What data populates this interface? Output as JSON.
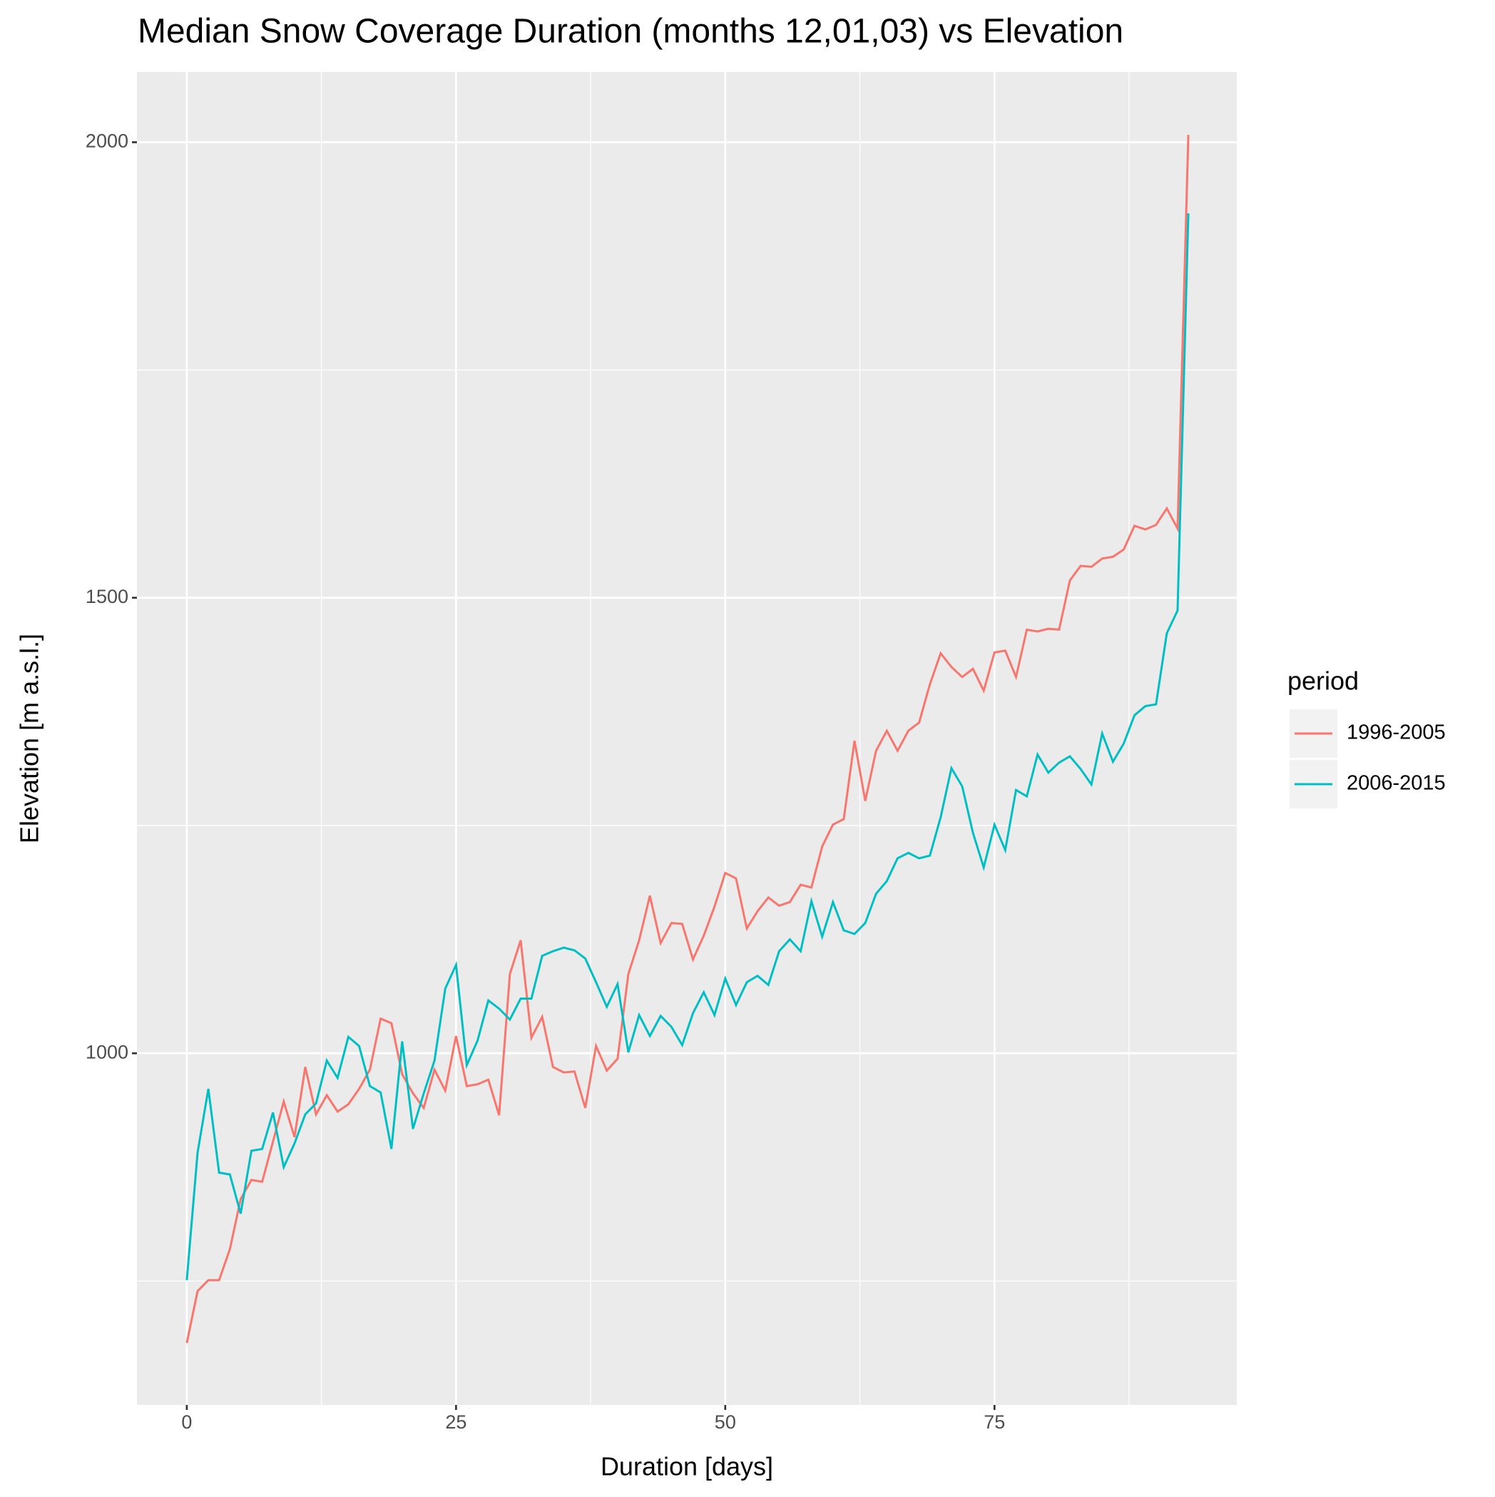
{
  "chart_data": {
    "type": "line",
    "title": "Median Snow Coverage Duration (months 12,01,03) vs Elevation",
    "x_label": "Duration [days]",
    "y_label": "Elevation [m a.s.l.]",
    "legend_title": "period",
    "legend_position": "right",
    "x": [
      0,
      1,
      2,
      3,
      4,
      5,
      6,
      7,
      8,
      9,
      10,
      11,
      12,
      13,
      14,
      15,
      16,
      17,
      18,
      19,
      20,
      21,
      22,
      23,
      24,
      25,
      26,
      27,
      28,
      29,
      30,
      31,
      32,
      33,
      34,
      35,
      36,
      37,
      38,
      39,
      40,
      41,
      42,
      43,
      44,
      45,
      46,
      47,
      48,
      49,
      50,
      51,
      52,
      53,
      54,
      55,
      56,
      57,
      58,
      59,
      60,
      61,
      62,
      63,
      64,
      65,
      66,
      67,
      68,
      69,
      70,
      71,
      72,
      73,
      74,
      75,
      76,
      77,
      78,
      79,
      80,
      81,
      82,
      83,
      84,
      85,
      86,
      87,
      88,
      89,
      90,
      91,
      92,
      93
    ],
    "series": [
      {
        "name": "1996-2005",
        "color": "#f8766d",
        "values": [
          682,
          739,
          751,
          751,
          785,
          840,
          861,
          859,
          903,
          947,
          908,
          985,
          933,
          954,
          936,
          944,
          961,
          982,
          1038,
          1033,
          977,
          956,
          940,
          982,
          959,
          1019,
          964,
          966,
          971,
          932,
          1087,
          1124,
          1017,
          1040,
          985,
          979,
          980,
          940,
          1008,
          981,
          994,
          1087,
          1124,
          1173,
          1121,
          1143,
          1142,
          1103,
          1129,
          1161,
          1198,
          1192,
          1137,
          1156,
          1171,
          1162,
          1166,
          1185,
          1182,
          1227,
          1251,
          1257,
          1343,
          1277,
          1332,
          1354,
          1332,
          1354,
          1363,
          1405,
          1439,
          1424,
          1413,
          1422,
          1398,
          1440,
          1442,
          1413,
          1465,
          1463,
          1466,
          1465,
          1519,
          1535,
          1534,
          1543,
          1545,
          1553,
          1579,
          1575,
          1580,
          1598,
          1576,
          2008
        ]
      },
      {
        "name": "2006-2015",
        "color": "#00bfc4",
        "values": [
          751,
          891,
          961,
          869,
          867,
          824,
          893,
          895,
          935,
          875,
          901,
          933,
          945,
          992,
          973,
          1018,
          1008,
          964,
          957,
          895,
          1013,
          917,
          956,
          992,
          1071,
          1097,
          987,
          1014,
          1058,
          1049,
          1037,
          1060,
          1060,
          1107,
          1112,
          1116,
          1113,
          1104,
          1078,
          1051,
          1076,
          1001,
          1042,
          1019,
          1041,
          1029,
          1009,
          1044,
          1067,
          1042,
          1082,
          1053,
          1078,
          1085,
          1075,
          1112,
          1125,
          1112,
          1167,
          1128,
          1166,
          1135,
          1131,
          1143,
          1175,
          1189,
          1214,
          1220,
          1214,
          1217,
          1259,
          1313,
          1293,
          1242,
          1204,
          1251,
          1223,
          1289,
          1282,
          1328,
          1308,
          1319,
          1326,
          1312,
          1295,
          1351,
          1320,
          1340,
          1371,
          1381,
          1383,
          1461,
          1486,
          1922
        ]
      }
    ],
    "xlim": [
      -4.63,
      97.5
    ],
    "ylim": [
      614,
      2077
    ],
    "xticks": [
      0,
      25,
      50,
      75
    ],
    "yticks": [
      1000,
      1500,
      2000
    ],
    "minor_xticks": [
      12.5,
      37.5,
      62.5,
      87.5
    ],
    "minor_yticks": [
      750,
      1250,
      1750
    ],
    "grid": true,
    "panel_color": "#ebebeb"
  }
}
